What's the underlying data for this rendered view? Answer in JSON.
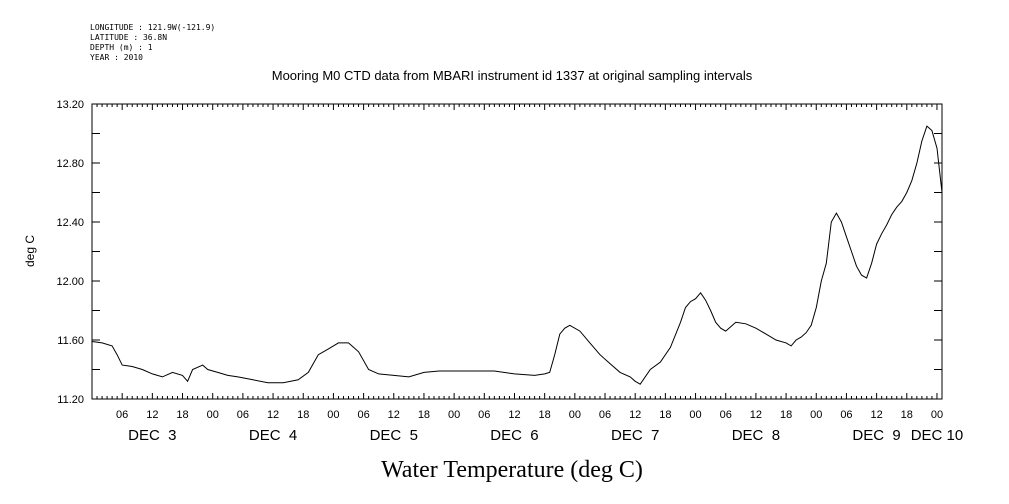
{
  "header": {
    "meta_lines": [
      "LONGITUDE : 121.9W(-121.9)",
      "LATITUDE : 36.8N",
      "DEPTH (m) : 1",
      "YEAR : 2010"
    ]
  },
  "chart_data": {
    "type": "line",
    "title": "Mooring M0 CTD data from MBARI instrument id 1337 at original sampling intervals",
    "xlabel": "Water Temperature (deg C)",
    "ylabel": "deg C",
    "xlim": [
      "2010-12-03T00:00",
      "2010-12-10T01:00"
    ],
    "ylim": [
      11.2,
      13.2
    ],
    "yticks": [
      "11.20",
      "11.60",
      "12.00",
      "12.40",
      "12.80",
      "13.20"
    ],
    "hour_tick_labels": [
      "06",
      "12",
      "18",
      "00",
      "06",
      "12",
      "18",
      "00",
      "06",
      "12",
      "18",
      "00",
      "06",
      "12",
      "18",
      "00",
      "06",
      "12",
      "18",
      "00",
      "06",
      "12",
      "18",
      "00",
      "06",
      "12",
      "18",
      "00"
    ],
    "day_labels": [
      "DEC  3",
      "DEC  4",
      "DEC  5",
      "DEC  6",
      "DEC  7",
      "DEC  8",
      "DEC  9",
      "DEC 10"
    ],
    "grid": false,
    "series": [
      {
        "color": "#000000",
        "x": [
          "2010-12-03T00:00",
          "2010-12-03T02:00",
          "2010-12-03T04:00",
          "2010-12-03T05:00",
          "2010-12-03T06:00",
          "2010-12-03T08:00",
          "2010-12-03T10:00",
          "2010-12-03T12:00",
          "2010-12-03T14:00",
          "2010-12-03T16:00",
          "2010-12-03T18:00",
          "2010-12-03T19:00",
          "2010-12-03T20:00",
          "2010-12-03T22:00",
          "2010-12-03T23:00",
          "2010-12-04T01:00",
          "2010-12-04T03:00",
          "2010-12-04T05:00",
          "2010-12-04T08:00",
          "2010-12-04T11:00",
          "2010-12-04T14:00",
          "2010-12-04T17:00",
          "2010-12-04T19:00",
          "2010-12-04T21:00",
          "2010-12-04T23:00",
          "2010-12-05T01:00",
          "2010-12-05T03:00",
          "2010-12-05T05:00",
          "2010-12-05T07:00",
          "2010-12-05T09:00",
          "2010-12-05T12:00",
          "2010-12-05T15:00",
          "2010-12-05T18:00",
          "2010-12-05T21:00",
          "2010-12-06T00:00",
          "2010-12-06T04:00",
          "2010-12-06T08:00",
          "2010-12-06T12:00",
          "2010-12-06T16:00",
          "2010-12-06T18:00",
          "2010-12-06T19:00",
          "2010-12-06T20:00",
          "2010-12-06T21:00",
          "2010-12-06T22:00",
          "2010-12-06T23:00",
          "2010-12-07T01:00",
          "2010-12-07T03:00",
          "2010-12-07T05:00",
          "2010-12-07T07:00",
          "2010-12-07T09:00",
          "2010-12-07T11:00",
          "2010-12-07T12:00",
          "2010-12-07T13:00",
          "2010-12-07T15:00",
          "2010-12-07T17:00",
          "2010-12-07T19:00",
          "2010-12-07T21:00",
          "2010-12-07T22:00",
          "2010-12-07T23:00",
          "2010-12-08T00:00",
          "2010-12-08T01:00",
          "2010-12-08T02:00",
          "2010-12-08T03:00",
          "2010-12-08T04:00",
          "2010-12-08T05:00",
          "2010-12-08T06:00",
          "2010-12-08T08:00",
          "2010-12-08T10:00",
          "2010-12-08T12:00",
          "2010-12-08T14:00",
          "2010-12-08T16:00",
          "2010-12-08T18:00",
          "2010-12-08T19:00",
          "2010-12-08T20:00",
          "2010-12-08T21:00",
          "2010-12-08T22:00",
          "2010-12-08T23:00",
          "2010-12-09T00:00",
          "2010-12-09T01:00",
          "2010-12-09T02:00",
          "2010-12-09T03:00",
          "2010-12-09T04:00",
          "2010-12-09T05:00",
          "2010-12-09T06:00",
          "2010-12-09T07:00",
          "2010-12-09T08:00",
          "2010-12-09T09:00",
          "2010-12-09T10:00",
          "2010-12-09T11:00",
          "2010-12-09T12:00",
          "2010-12-09T13:00",
          "2010-12-09T14:00",
          "2010-12-09T15:00",
          "2010-12-09T16:00",
          "2010-12-09T17:00",
          "2010-12-09T18:00",
          "2010-12-09T19:00",
          "2010-12-09T20:00",
          "2010-12-09T21:00",
          "2010-12-09T22:00",
          "2010-12-09T23:00",
          "2010-12-10T00:00",
          "2010-12-10T01:00"
        ],
        "y": [
          11.59,
          11.58,
          11.56,
          11.5,
          11.43,
          11.42,
          11.4,
          11.37,
          11.35,
          11.38,
          11.36,
          11.32,
          11.4,
          11.43,
          11.4,
          11.38,
          11.36,
          11.35,
          11.33,
          11.31,
          11.31,
          11.33,
          11.38,
          11.5,
          11.54,
          11.58,
          11.58,
          11.52,
          11.4,
          11.37,
          11.36,
          11.35,
          11.38,
          11.39,
          11.39,
          11.39,
          11.39,
          11.37,
          11.36,
          11.37,
          11.38,
          11.5,
          11.64,
          11.68,
          11.7,
          11.66,
          11.58,
          11.5,
          11.44,
          11.38,
          11.35,
          11.32,
          11.3,
          11.4,
          11.45,
          11.55,
          11.72,
          11.82,
          11.86,
          11.88,
          11.92,
          11.87,
          11.8,
          11.72,
          11.68,
          11.66,
          11.72,
          11.71,
          11.68,
          11.64,
          11.6,
          11.58,
          11.56,
          11.6,
          11.62,
          11.65,
          11.7,
          11.82,
          12.0,
          12.12,
          12.4,
          12.46,
          12.4,
          12.3,
          12.2,
          12.1,
          12.04,
          12.02,
          12.12,
          12.25,
          12.32,
          12.38,
          12.45,
          12.5,
          12.54,
          12.6,
          12.68,
          12.8,
          12.95,
          13.05,
          13.02,
          12.9,
          12.6
        ]
      }
    ]
  }
}
